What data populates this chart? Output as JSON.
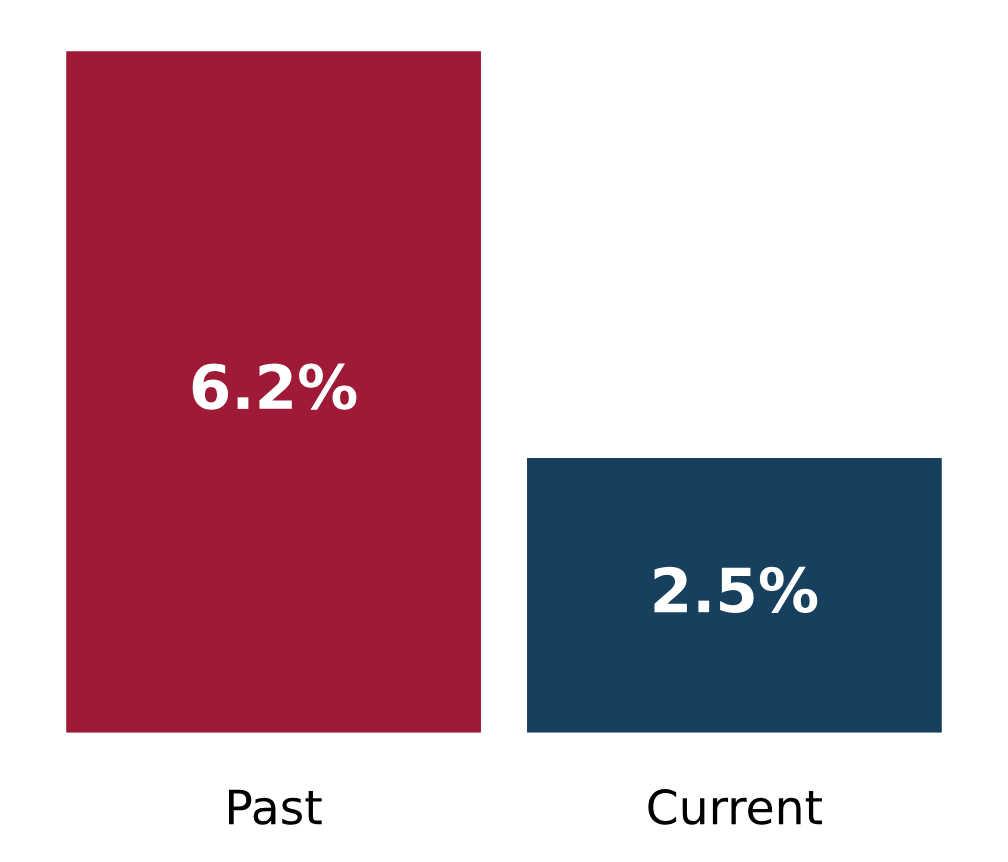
{
  "chart_data": {
    "type": "bar",
    "categories": [
      "Past",
      "Current"
    ],
    "values": [
      6.2,
      2.5
    ],
    "value_labels": [
      "6.2%",
      "2.5%"
    ],
    "colors": [
      "#9e1a36",
      "#16405e"
    ]
  }
}
